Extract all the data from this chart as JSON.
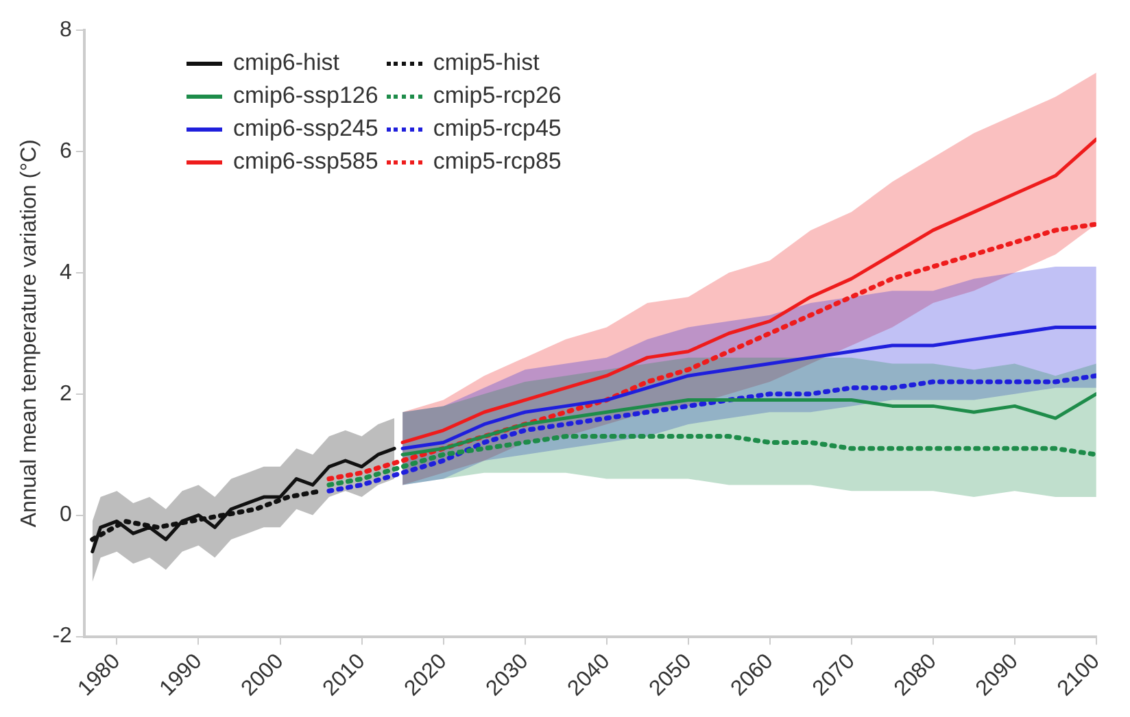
{
  "chart_data": {
    "type": "line",
    "ylabel": "Annual mean temperature variation (°C)",
    "xlim": [
      1976,
      2100
    ],
    "xticks": [
      1980,
      1990,
      2000,
      2010,
      2020,
      2030,
      2040,
      2050,
      2060,
      2070,
      2080,
      2090,
      2100
    ],
    "ylim": [
      -2,
      8
    ],
    "yticks": [
      -2,
      0,
      2,
      4,
      6,
      8
    ],
    "grid": false,
    "legend": "top left",
    "marker": "none",
    "line_style": "solid",
    "series": [
      {
        "name": "cmip6-hist",
        "color": "#111111",
        "x": [
          1977,
          1978,
          1980,
          1982,
          1984,
          1986,
          1988,
          1990,
          1992,
          1994,
          1996,
          1998,
          2000,
          2002,
          2004,
          2006,
          2008,
          2010,
          2012,
          2014
        ],
        "values": [
          -0.6,
          -0.2,
          -0.1,
          -0.3,
          -0.2,
          -0.4,
          -0.1,
          0.0,
          -0.2,
          0.1,
          0.2,
          0.3,
          0.3,
          0.6,
          0.5,
          0.8,
          0.9,
          0.8,
          1.0,
          1.1
        ],
        "lower": [
          -1.1,
          -0.7,
          -0.6,
          -0.8,
          -0.7,
          -0.9,
          -0.6,
          -0.5,
          -0.7,
          -0.4,
          -0.3,
          -0.2,
          -0.2,
          0.1,
          0.0,
          0.3,
          0.4,
          0.3,
          0.5,
          0.6
        ],
        "upper": [
          -0.1,
          0.3,
          0.4,
          0.2,
          0.3,
          0.1,
          0.4,
          0.5,
          0.3,
          0.6,
          0.7,
          0.8,
          0.8,
          1.1,
          1.0,
          1.3,
          1.4,
          1.3,
          1.5,
          1.6
        ]
      },
      {
        "name": "cmip6-ssp126",
        "color": "#1e8c4a",
        "x": [
          2015,
          2020,
          2025,
          2030,
          2035,
          2040,
          2045,
          2050,
          2055,
          2060,
          2065,
          2070,
          2075,
          2080,
          2085,
          2090,
          2095,
          2100
        ],
        "values": [
          1.0,
          1.1,
          1.3,
          1.5,
          1.6,
          1.7,
          1.8,
          1.9,
          1.9,
          1.9,
          1.9,
          1.9,
          1.8,
          1.8,
          1.7,
          1.8,
          1.6,
          2.0
        ],
        "lower": [
          0.5,
          0.6,
          0.7,
          0.7,
          0.7,
          0.6,
          0.6,
          0.6,
          0.5,
          0.5,
          0.5,
          0.4,
          0.4,
          0.4,
          0.3,
          0.4,
          0.3,
          0.3
        ],
        "upper": [
          1.7,
          1.8,
          2.0,
          2.2,
          2.3,
          2.4,
          2.5,
          2.6,
          2.6,
          2.6,
          2.6,
          2.6,
          2.5,
          2.5,
          2.4,
          2.5,
          2.3,
          2.5
        ]
      },
      {
        "name": "cmip6-ssp245",
        "color": "#1f1fdc",
        "x": [
          2015,
          2020,
          2025,
          2030,
          2035,
          2040,
          2045,
          2050,
          2055,
          2060,
          2065,
          2070,
          2075,
          2080,
          2085,
          2090,
          2095,
          2100
        ],
        "values": [
          1.1,
          1.2,
          1.5,
          1.7,
          1.8,
          1.9,
          2.1,
          2.3,
          2.4,
          2.5,
          2.6,
          2.7,
          2.8,
          2.8,
          2.9,
          3.0,
          3.1,
          3.1
        ],
        "lower": [
          0.5,
          0.6,
          0.9,
          1.0,
          1.1,
          1.2,
          1.3,
          1.5,
          1.6,
          1.7,
          1.7,
          1.8,
          1.9,
          1.9,
          1.9,
          2.0,
          2.1,
          2.1
        ],
        "upper": [
          1.7,
          1.8,
          2.1,
          2.4,
          2.5,
          2.6,
          2.9,
          3.1,
          3.2,
          3.3,
          3.5,
          3.6,
          3.7,
          3.7,
          3.9,
          4.0,
          4.1,
          4.1
        ]
      },
      {
        "name": "cmip6-ssp585",
        "color": "#ee1c1c",
        "x": [
          2015,
          2020,
          2025,
          2030,
          2035,
          2040,
          2045,
          2050,
          2055,
          2060,
          2065,
          2070,
          2075,
          2080,
          2085,
          2090,
          2095,
          2100
        ],
        "values": [
          1.2,
          1.4,
          1.7,
          1.9,
          2.1,
          2.3,
          2.6,
          2.7,
          3.0,
          3.2,
          3.6,
          3.9,
          4.3,
          4.7,
          5.0,
          5.3,
          5.6,
          6.2
        ],
        "lower": [
          0.5,
          0.7,
          0.9,
          1.2,
          1.3,
          1.5,
          1.7,
          1.8,
          2.0,
          2.2,
          2.5,
          2.8,
          3.1,
          3.5,
          3.7,
          4.0,
          4.3,
          4.8
        ],
        "upper": [
          1.7,
          1.9,
          2.3,
          2.6,
          2.9,
          3.1,
          3.5,
          3.6,
          4.0,
          4.2,
          4.7,
          5.0,
          5.5,
          5.9,
          6.3,
          6.6,
          6.9,
          7.3
        ]
      },
      {
        "name": "cmip5-hist",
        "color": "#111111",
        "line_style": "dotted",
        "x": [
          1977,
          1981,
          1985,
          1989,
          1993,
          1997,
          2001,
          2005
        ],
        "values": [
          -0.4,
          -0.1,
          -0.2,
          -0.1,
          0.0,
          0.1,
          0.3,
          0.4
        ]
      },
      {
        "name": "cmip5-rcp26",
        "color": "#1e8c4a",
        "line_style": "dotted",
        "x": [
          2006,
          2010,
          2015,
          2020,
          2025,
          2030,
          2035,
          2040,
          2045,
          2050,
          2055,
          2060,
          2065,
          2070,
          2075,
          2080,
          2085,
          2090,
          2095,
          2100
        ],
        "values": [
          0.5,
          0.6,
          0.8,
          1.0,
          1.1,
          1.2,
          1.3,
          1.3,
          1.3,
          1.3,
          1.3,
          1.2,
          1.2,
          1.1,
          1.1,
          1.1,
          1.1,
          1.1,
          1.1,
          1.0
        ]
      },
      {
        "name": "cmip5-rcp45",
        "color": "#1f1fdc",
        "line_style": "dotted",
        "x": [
          2006,
          2010,
          2015,
          2020,
          2025,
          2030,
          2035,
          2040,
          2045,
          2050,
          2055,
          2060,
          2065,
          2070,
          2075,
          2080,
          2085,
          2090,
          2095,
          2100
        ],
        "values": [
          0.4,
          0.5,
          0.7,
          0.9,
          1.2,
          1.4,
          1.5,
          1.6,
          1.7,
          1.8,
          1.9,
          2.0,
          2.0,
          2.1,
          2.1,
          2.2,
          2.2,
          2.2,
          2.2,
          2.3
        ]
      },
      {
        "name": "cmip5-rcp85",
        "color": "#ee1c1c",
        "line_style": "dotted",
        "x": [
          2006,
          2010,
          2015,
          2020,
          2025,
          2030,
          2035,
          2040,
          2045,
          2050,
          2055,
          2060,
          2065,
          2070,
          2075,
          2080,
          2085,
          2090,
          2095,
          2100
        ],
        "values": [
          0.6,
          0.7,
          0.9,
          1.1,
          1.3,
          1.5,
          1.7,
          1.9,
          2.2,
          2.4,
          2.7,
          3.0,
          3.3,
          3.6,
          3.9,
          4.1,
          4.3,
          4.5,
          4.7,
          4.8
        ]
      }
    ]
  }
}
